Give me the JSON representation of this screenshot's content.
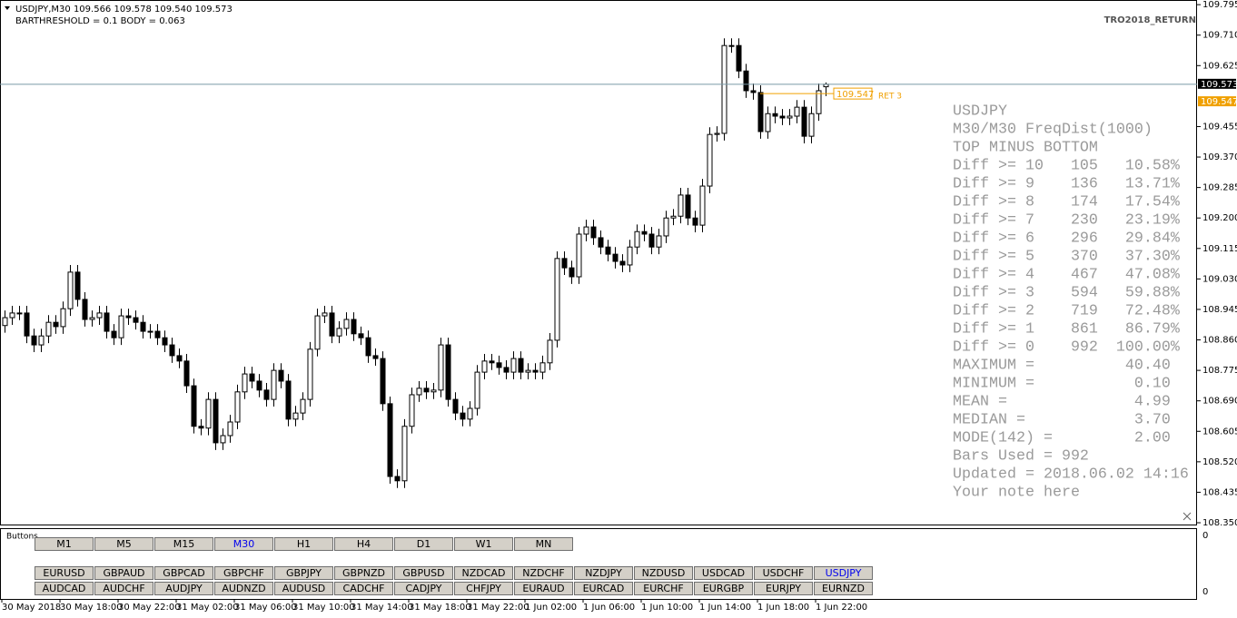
{
  "header": {
    "symbol_line": "USDJPY,M30  109.566 109.578 109.540 109.573",
    "indicator_line": "BARTHRESHOLD = 0.1    BODY = 0.063",
    "indicator_name": "TRO2018_RETURN"
  },
  "chart_data": {
    "type": "candlestick",
    "open": [
      108.9,
      108.922,
      108.935,
      108.935,
      108.871,
      108.846,
      108.871,
      108.909,
      108.897,
      108.947,
      109.049,
      108.973,
      108.917,
      108.922,
      108.935,
      108.884,
      108.866,
      108.927,
      108.922,
      108.909,
      108.884,
      108.884,
      108.866,
      108.846,
      108.816,
      108.801,
      108.732,
      108.619,
      108.614,
      108.694,
      108.573,
      108.593,
      108.631,
      108.715,
      108.765,
      108.745,
      108.72,
      108.694,
      108.775,
      108.745,
      108.639,
      108.656,
      108.694,
      108.834,
      108.927,
      108.935,
      108.871,
      108.892,
      108.917,
      108.877,
      108.866,
      108.816,
      108.808,
      108.682,
      108.479,
      108.467,
      108.619,
      108.707,
      108.725,
      108.715,
      108.72,
      108.846,
      108.694,
      108.656,
      108.639,
      108.669,
      108.77,
      108.801,
      108.796,
      108.783,
      108.77,
      108.808,
      108.77,
      108.775,
      108.77,
      108.796,
      108.859,
      109.087,
      109.061,
      109.036,
      109.155,
      109.175,
      109.145,
      109.119,
      109.099,
      109.079,
      109.069,
      109.119,
      109.162,
      109.155,
      109.119,
      109.15,
      109.2,
      109.205,
      109.264,
      109.2,
      109.18,
      109.289,
      109.433,
      109.436,
      109.681,
      109.681,
      109.61,
      109.555,
      109.55,
      109.441,
      109.491,
      109.484,
      109.479,
      109.484,
      109.509,
      109.428,
      109.491,
      109.566
    ],
    "high": [
      108.942,
      108.955,
      108.955,
      108.955,
      108.891,
      108.891,
      108.929,
      108.929,
      108.967,
      109.069,
      109.069,
      108.993,
      108.942,
      108.955,
      108.955,
      108.904,
      108.947,
      108.947,
      108.942,
      108.929,
      108.904,
      108.904,
      108.886,
      108.866,
      108.836,
      108.821,
      108.752,
      108.639,
      108.714,
      108.714,
      108.613,
      108.651,
      108.735,
      108.785,
      108.785,
      108.765,
      108.74,
      108.795,
      108.795,
      108.765,
      108.676,
      108.714,
      108.854,
      108.947,
      108.955,
      108.955,
      108.912,
      108.937,
      108.937,
      108.897,
      108.886,
      108.836,
      108.828,
      108.702,
      108.499,
      108.639,
      108.727,
      108.745,
      108.745,
      108.74,
      108.866,
      108.866,
      108.714,
      108.676,
      108.689,
      108.79,
      108.821,
      108.821,
      108.816,
      108.803,
      108.828,
      108.828,
      108.795,
      108.795,
      108.816,
      108.879,
      109.107,
      109.107,
      109.081,
      109.175,
      109.195,
      109.195,
      109.165,
      109.139,
      109.119,
      109.099,
      109.139,
      109.182,
      109.182,
      109.175,
      109.17,
      109.22,
      109.225,
      109.284,
      109.284,
      109.22,
      109.309,
      109.453,
      109.456,
      109.701,
      109.701,
      109.701,
      109.63,
      109.575,
      109.57,
      109.511,
      109.511,
      109.504,
      109.504,
      109.529,
      109.529,
      109.511,
      109.575,
      109.578
    ],
    "low": [
      108.88,
      108.902,
      108.915,
      108.851,
      108.826,
      108.826,
      108.851,
      108.877,
      108.877,
      108.927,
      108.953,
      108.897,
      108.897,
      108.902,
      108.864,
      108.846,
      108.846,
      108.902,
      108.889,
      108.864,
      108.864,
      108.846,
      108.826,
      108.796,
      108.781,
      108.712,
      108.599,
      108.594,
      108.594,
      108.553,
      108.553,
      108.573,
      108.611,
      108.695,
      108.725,
      108.7,
      108.674,
      108.674,
      108.725,
      108.619,
      108.619,
      108.636,
      108.674,
      108.814,
      108.907,
      108.851,
      108.851,
      108.872,
      108.857,
      108.846,
      108.796,
      108.788,
      108.662,
      108.459,
      108.447,
      108.447,
      108.599,
      108.687,
      108.695,
      108.695,
      108.7,
      108.674,
      108.636,
      108.619,
      108.619,
      108.649,
      108.75,
      108.776,
      108.763,
      108.75,
      108.75,
      108.75,
      108.75,
      108.75,
      108.75,
      108.776,
      108.839,
      109.041,
      109.016,
      109.016,
      109.135,
      109.125,
      109.099,
      109.079,
      109.059,
      109.049,
      109.049,
      109.099,
      109.135,
      109.099,
      109.099,
      109.13,
      109.18,
      109.185,
      109.18,
      109.16,
      109.16,
      109.269,
      109.413,
      109.416,
      109.661,
      109.59,
      109.535,
      109.53,
      109.421,
      109.421,
      109.464,
      109.459,
      109.459,
      109.464,
      109.408,
      109.408,
      109.471,
      109.54
    ],
    "close": [
      108.922,
      108.935,
      108.935,
      108.871,
      108.846,
      108.871,
      108.909,
      108.897,
      108.947,
      109.049,
      108.973,
      108.917,
      108.922,
      108.935,
      108.884,
      108.866,
      108.927,
      108.922,
      108.909,
      108.884,
      108.884,
      108.866,
      108.846,
      108.816,
      108.801,
      108.732,
      108.619,
      108.614,
      108.694,
      108.573,
      108.593,
      108.631,
      108.715,
      108.765,
      108.745,
      108.72,
      108.694,
      108.775,
      108.745,
      108.639,
      108.656,
      108.694,
      108.834,
      108.927,
      108.935,
      108.871,
      108.892,
      108.917,
      108.877,
      108.866,
      108.816,
      108.808,
      108.682,
      108.479,
      108.467,
      108.619,
      108.707,
      108.725,
      108.715,
      108.72,
      108.846,
      108.694,
      108.656,
      108.639,
      108.669,
      108.77,
      108.801,
      108.796,
      108.783,
      108.77,
      108.808,
      108.77,
      108.775,
      108.77,
      108.796,
      108.859,
      109.087,
      109.061,
      109.036,
      109.155,
      109.175,
      109.145,
      109.119,
      109.099,
      109.079,
      109.069,
      109.119,
      109.162,
      109.155,
      109.119,
      109.15,
      109.2,
      109.205,
      109.264,
      109.2,
      109.18,
      109.289,
      109.433,
      109.436,
      109.681,
      109.681,
      109.61,
      109.555,
      109.55,
      109.441,
      109.491,
      109.484,
      109.479,
      109.484,
      109.509,
      109.428,
      109.491,
      109.555,
      109.573
    ],
    "xlim": [
      -0.625,
      164.125
    ],
    "xticks": [
      {
        "value": 0,
        "label": "30 May 2018"
      },
      {
        "value": 8,
        "label": "30 May 18:00"
      },
      {
        "value": 16,
        "label": "30 May 22:00"
      },
      {
        "value": 24,
        "label": "31 May 02:00"
      },
      {
        "value": 32,
        "label": "31 May 06:00"
      },
      {
        "value": 40,
        "label": "31 May 10:00"
      },
      {
        "value": 48,
        "label": "31 May 14:00"
      },
      {
        "value": 56,
        "label": "31 May 18:00"
      },
      {
        "value": 64,
        "label": "31 May 22:00"
      },
      {
        "value": 72,
        "label": "1 Jun 02:00"
      },
      {
        "value": 80,
        "label": "1 Jun 06:00"
      },
      {
        "value": 88,
        "label": "1 Jun 10:00"
      },
      {
        "value": 96,
        "label": "1 Jun 14:00"
      },
      {
        "value": 104,
        "label": "1 Jun 18:00"
      },
      {
        "value": 112,
        "label": "1 Jun 22:00"
      }
    ],
    "ylim": [
      108.345,
      109.808
    ],
    "yticks": [
      109.795,
      {
        "value": 109.71,
        "label": "109.710"
      },
      109.625,
      109.455,
      {
        "value": 109.37,
        "label": "109.370"
      },
      109.285,
      {
        "value": 109.2,
        "label": "109.200"
      },
      109.115,
      {
        "value": 109.03,
        "label": "109.030"
      },
      108.945,
      {
        "value": 108.86,
        "label": "108.860"
      },
      108.775,
      {
        "value": 108.69,
        "label": "108.690"
      },
      108.605,
      {
        "value": 108.52,
        "label": "108.520"
      },
      108.435,
      {
        "value": 108.35,
        "label": "108.350"
      }
    ],
    "up_color": "#ffffff",
    "down_color": "#000000",
    "bid_line": 109.573,
    "ret_line": {
      "value": 109.547,
      "text": "RET 3"
    }
  },
  "stats_panel": {
    "lines": [
      "USDJPY",
      "M30/M30 FreqDist(1000)",
      "TOP MINUS BOTTOM",
      "Diff >= 10   105   10.58%",
      "Diff >= 9    136   13.71%",
      "Diff >= 8    174   17.54%",
      "Diff >= 7    230   23.19%",
      "Diff >= 6    296   29.84%",
      "Diff >= 5    370   37.30%",
      "Diff >= 4    467   47.08%",
      "Diff >= 3    594   59.88%",
      "Diff >= 2    719   72.48%",
      "Diff >= 1    861   86.79%",
      "Diff >= 0    992  100.00%",
      "MAXIMUM =          40.40",
      "MINIMUM =           0.10",
      "MEAN =              4.99",
      "MEDIAN =            3.70",
      "MODE(142) =         2.00",
      "Bars Used = 992",
      "Updated = 2018.06.02 14:16",
      "Your note here"
    ]
  },
  "buttons_panel": {
    "title": "Buttons",
    "yticks": [
      0,
      0
    ],
    "timeframes": [
      "M1",
      "M5",
      "M15",
      "M30",
      "H1",
      "H4",
      "D1",
      "W1",
      "MN"
    ],
    "active_timeframe": 3,
    "symbols_row1": [
      "EURUSD",
      "GBPAUD",
      "GBPCAD",
      "GBPCHF",
      "GBPJPY",
      "GBPNZD",
      "GBPUSD",
      "NZDCAD",
      "NZDCHF",
      "NZDJPY",
      "NZDUSD",
      "USDCAD",
      "USDCHF",
      "USDJPY"
    ],
    "active_symbol_row1": 13,
    "symbols_row2": [
      "AUDCAD",
      "AUDCHF",
      "AUDJPY",
      "AUDNZD",
      "AUDUSD",
      "CADCHF",
      "CADJPY",
      "CHFJPY",
      "EURAUD",
      "EURCAD",
      "EURCHF",
      "EURGBP",
      "EURJPY",
      "EURNZD"
    ]
  }
}
